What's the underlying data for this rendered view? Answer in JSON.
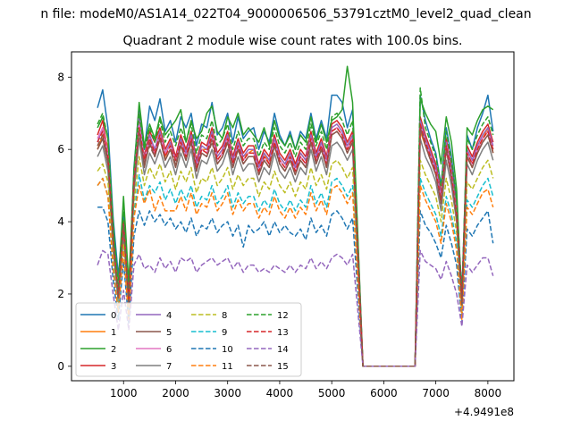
{
  "chart_data": {
    "type": "line",
    "suptitle": "n file: modeM0/AS1A14_022T04_9000006506_53791cztM0_level2_quad_clean",
    "title": "Quadrant 2 module wise count rates with 100.0s bins.",
    "xlabel": "",
    "ylabel": "",
    "x_offset_label": "+4.9491e8",
    "xlim": [
      0,
      8500
    ],
    "ylim": [
      -0.4,
      8.7
    ],
    "xticks": [
      1000,
      2000,
      3000,
      4000,
      5000,
      6000,
      7000,
      8000
    ],
    "xtick_labels": [
      "1000",
      "2000",
      "3000",
      "4000",
      "5000",
      "6000",
      "7000",
      "8000"
    ],
    "yticks": [
      0,
      2,
      4,
      6,
      8
    ],
    "ytick_labels": [
      "0",
      "2",
      "4",
      "6",
      "8"
    ],
    "grid": false,
    "legend": {
      "placement": "lower-left",
      "columns": 4
    },
    "x": [
      500,
      600,
      700,
      800,
      900,
      1000,
      1100,
      1200,
      1300,
      1400,
      1500,
      1600,
      1700,
      1800,
      1900,
      2000,
      2100,
      2200,
      2300,
      2400,
      2500,
      2600,
      2700,
      2800,
      2900,
      3000,
      3100,
      3200,
      3300,
      3400,
      3500,
      3600,
      3700,
      3800,
      3900,
      4000,
      4100,
      4200,
      4300,
      4400,
      4500,
      4600,
      4700,
      4800,
      4900,
      5000,
      5100,
      5200,
      5300,
      5400,
      5600,
      6600,
      6700,
      6800,
      6900,
      7000,
      7100,
      7200,
      7300,
      7400,
      7500,
      7600,
      7700,
      7800,
      7900,
      8000,
      8100
    ],
    "series": [
      {
        "name": "0",
        "color": "#1f77b4",
        "dash": false,
        "values": [
          7.15,
          7.65,
          6.6,
          4.1,
          2.5,
          4.2,
          2.0,
          5.5,
          7.2,
          6.0,
          7.2,
          6.8,
          7.4,
          6.5,
          6.8,
          6.2,
          6.9,
          6.6,
          7.0,
          6.1,
          6.7,
          6.6,
          7.3,
          6.4,
          6.6,
          7.0,
          6.2,
          6.9,
          6.3,
          6.5,
          6.6,
          6.0,
          6.5,
          6.2,
          7.0,
          6.4,
          6.1,
          6.5,
          6.0,
          6.5,
          6.3,
          7.0,
          6.3,
          6.8,
          6.3,
          7.5,
          7.5,
          7.3,
          6.6,
          7.1,
          0,
          0,
          7.5,
          6.8,
          6.3,
          5.9,
          5.0,
          6.6,
          5.8,
          4.6,
          2.0,
          6.4,
          6.0,
          6.6,
          7.0,
          7.5,
          6.5
        ]
      },
      {
        "name": "1",
        "color": "#ff7f0e",
        "dash": false,
        "values": [
          6.0,
          6.4,
          6.1,
          3.6,
          2.3,
          3.8,
          1.7,
          4.9,
          6.3,
          5.6,
          6.3,
          6.0,
          6.4,
          5.8,
          6.2,
          5.7,
          6.2,
          5.9,
          6.3,
          5.6,
          6.0,
          6.0,
          6.4,
          5.8,
          6.0,
          6.3,
          5.7,
          6.1,
          5.8,
          5.9,
          6.0,
          5.5,
          5.9,
          5.6,
          6.2,
          5.8,
          5.6,
          5.9,
          5.5,
          5.9,
          5.7,
          6.3,
          5.8,
          6.1,
          5.7,
          6.5,
          6.6,
          6.4,
          6.0,
          6.3,
          0,
          0,
          6.5,
          6.1,
          5.8,
          5.4,
          4.6,
          6.0,
          5.3,
          4.2,
          1.8,
          5.8,
          5.5,
          6.0,
          6.3,
          6.6,
          5.9
        ]
      },
      {
        "name": "2",
        "color": "#2ca02c",
        "dash": false,
        "values": [
          6.6,
          6.9,
          6.3,
          3.9,
          2.2,
          4.7,
          2.3,
          5.4,
          7.3,
          6.1,
          6.7,
          6.3,
          6.9,
          6.4,
          6.6,
          6.8,
          7.1,
          6.2,
          6.8,
          6.3,
          6.5,
          7.0,
          7.2,
          6.5,
          6.3,
          6.9,
          6.6,
          7.0,
          6.4,
          6.6,
          6.4,
          6.2,
          6.6,
          6.1,
          6.8,
          6.3,
          6.1,
          6.4,
          6.0,
          6.4,
          6.2,
          6.9,
          6.2,
          6.7,
          6.2,
          6.8,
          6.9,
          7.1,
          8.3,
          7.3,
          0,
          0,
          7.4,
          7.0,
          6.7,
          6.5,
          5.6,
          6.9,
          6.2,
          4.9,
          1.7,
          6.6,
          6.4,
          6.8,
          7.1,
          7.2,
          7.1
        ]
      },
      {
        "name": "3",
        "color": "#d62728",
        "dash": false,
        "values": [
          6.4,
          6.8,
          5.9,
          3.5,
          2.0,
          4.0,
          1.8,
          5.2,
          6.8,
          5.8,
          6.5,
          6.2,
          6.6,
          6.0,
          6.3,
          5.8,
          6.4,
          6.0,
          6.5,
          5.7,
          6.2,
          6.1,
          6.6,
          5.9,
          6.1,
          6.5,
          5.8,
          6.3,
          5.9,
          6.1,
          6.1,
          5.6,
          6.0,
          5.8,
          6.4,
          5.9,
          5.7,
          6.0,
          5.6,
          6.0,
          5.8,
          6.5,
          5.9,
          6.3,
          5.8,
          6.7,
          6.8,
          6.6,
          6.2,
          6.5,
          0,
          0,
          6.9,
          6.4,
          6.0,
          5.6,
          4.8,
          6.3,
          5.5,
          4.4,
          1.9,
          6.1,
          5.8,
          6.2,
          6.5,
          6.7,
          6.2
        ]
      },
      {
        "name": "4",
        "color": "#9467bd",
        "dash": false,
        "values": [
          6.2,
          6.6,
          5.8,
          3.4,
          1.9,
          3.9,
          1.7,
          5.1,
          7.0,
          5.7,
          6.4,
          6.0,
          6.5,
          5.9,
          6.2,
          5.7,
          6.3,
          5.9,
          6.4,
          5.6,
          6.1,
          6.0,
          6.5,
          5.8,
          6.0,
          6.4,
          5.7,
          6.2,
          5.8,
          6.0,
          6.0,
          5.5,
          5.9,
          5.7,
          6.3,
          5.8,
          5.6,
          5.9,
          5.5,
          5.9,
          5.7,
          6.4,
          5.8,
          6.2,
          5.7,
          6.6,
          6.7,
          6.5,
          6.1,
          6.4,
          0,
          0,
          6.8,
          6.3,
          5.9,
          5.5,
          4.7,
          6.2,
          5.4,
          4.3,
          1.8,
          6.0,
          5.7,
          6.1,
          6.4,
          6.6,
          6.1
        ]
      },
      {
        "name": "5",
        "color": "#8c564b",
        "dash": false,
        "values": [
          6.0,
          6.3,
          5.6,
          3.3,
          1.8,
          3.8,
          1.6,
          4.9,
          6.6,
          5.5,
          6.2,
          5.8,
          6.3,
          5.7,
          6.0,
          5.5,
          6.1,
          5.7,
          6.2,
          5.4,
          5.9,
          5.8,
          6.3,
          5.6,
          5.8,
          6.2,
          5.5,
          6.0,
          5.6,
          5.8,
          5.8,
          5.3,
          5.7,
          5.5,
          6.1,
          5.6,
          5.4,
          5.7,
          5.3,
          5.7,
          5.5,
          6.2,
          5.6,
          6.0,
          5.5,
          6.4,
          6.5,
          6.3,
          5.9,
          6.2,
          0,
          0,
          6.6,
          6.1,
          5.7,
          5.3,
          4.5,
          6.0,
          5.2,
          4.1,
          1.7,
          5.8,
          5.5,
          5.9,
          6.2,
          6.4,
          5.9
        ]
      },
      {
        "name": "6",
        "color": "#e377c2",
        "dash": false,
        "values": [
          6.3,
          6.6,
          5.9,
          3.5,
          2.0,
          3.9,
          1.8,
          5.1,
          6.7,
          5.7,
          6.3,
          5.9,
          6.4,
          5.9,
          6.1,
          5.7,
          6.2,
          5.8,
          6.3,
          5.5,
          6.0,
          5.9,
          6.4,
          5.7,
          5.9,
          6.3,
          5.6,
          6.1,
          5.7,
          5.9,
          5.9,
          5.4,
          5.8,
          5.6,
          6.2,
          5.7,
          5.5,
          5.8,
          5.4,
          5.8,
          5.6,
          6.3,
          5.7,
          6.1,
          5.6,
          6.5,
          6.6,
          6.4,
          6.0,
          6.3,
          0,
          0,
          6.7,
          6.2,
          5.8,
          5.4,
          4.6,
          6.1,
          5.3,
          4.2,
          1.8,
          5.9,
          5.6,
          6.0,
          6.3,
          6.5,
          6.0
        ]
      },
      {
        "name": "7",
        "color": "#7f7f7f",
        "dash": false,
        "values": [
          5.8,
          6.1,
          5.4,
          3.2,
          1.8,
          3.6,
          1.6,
          4.8,
          6.3,
          5.3,
          5.9,
          5.6,
          6.0,
          5.5,
          5.8,
          5.3,
          5.9,
          5.5,
          6.0,
          5.2,
          5.7,
          5.6,
          6.0,
          5.4,
          5.6,
          6.0,
          5.3,
          5.8,
          5.4,
          5.6,
          5.6,
          5.1,
          5.5,
          5.3,
          5.9,
          5.4,
          5.2,
          5.5,
          5.1,
          5.5,
          5.3,
          6.0,
          5.4,
          5.8,
          5.3,
          6.1,
          6.2,
          6.0,
          5.7,
          6.0,
          0,
          0,
          6.3,
          5.8,
          5.5,
          5.1,
          4.3,
          5.7,
          5.0,
          4.0,
          1.6,
          5.6,
          5.3,
          5.7,
          6.0,
          6.2,
          5.7
        ]
      },
      {
        "name": "8",
        "color": "#bcbd22",
        "dash": true,
        "values": [
          5.4,
          5.6,
          5.1,
          3.0,
          1.7,
          3.4,
          1.5,
          4.5,
          5.8,
          5.0,
          5.5,
          5.2,
          5.6,
          5.1,
          5.4,
          4.9,
          5.4,
          5.1,
          5.5,
          4.8,
          5.2,
          5.1,
          5.5,
          5.0,
          5.2,
          5.5,
          4.9,
          5.3,
          5.0,
          5.2,
          5.2,
          4.7,
          5.1,
          4.9,
          5.4,
          5.0,
          4.8,
          5.1,
          4.7,
          5.1,
          4.9,
          5.5,
          5.0,
          5.3,
          4.9,
          5.6,
          5.7,
          5.5,
          5.2,
          5.5,
          0,
          0,
          5.7,
          5.3,
          5.0,
          4.7,
          4.0,
          5.2,
          4.6,
          3.7,
          1.5,
          5.1,
          4.9,
          5.2,
          5.5,
          5.7,
          5.2
        ]
      },
      {
        "name": "9",
        "color": "#17becf",
        "dash": true,
        "values": [
          5.0,
          5.2,
          4.7,
          2.8,
          1.6,
          3.2,
          1.4,
          4.2,
          5.3,
          4.6,
          5.0,
          4.8,
          5.1,
          4.6,
          4.9,
          4.5,
          4.9,
          4.6,
          5.0,
          4.4,
          4.7,
          4.6,
          5.0,
          4.5,
          4.7,
          5.0,
          4.4,
          4.8,
          4.5,
          4.7,
          4.7,
          4.3,
          4.6,
          4.4,
          4.9,
          4.5,
          4.3,
          4.6,
          4.3,
          4.6,
          4.4,
          5.0,
          4.5,
          4.8,
          4.4,
          5.1,
          5.2,
          5.0,
          4.7,
          5.0,
          0,
          0,
          5.2,
          4.8,
          4.5,
          4.2,
          3.6,
          4.7,
          4.2,
          3.4,
          1.4,
          4.6,
          4.4,
          4.7,
          5.0,
          5.2,
          4.7
        ]
      },
      {
        "name": "10",
        "color": "#1f77b4",
        "dash": true,
        "values": [
          4.4,
          4.4,
          4.0,
          2.4,
          1.3,
          2.9,
          1.2,
          3.6,
          4.3,
          3.9,
          4.3,
          4.0,
          4.2,
          3.9,
          4.1,
          3.8,
          4.0,
          3.7,
          4.1,
          3.6,
          3.9,
          3.8,
          4.1,
          3.7,
          3.9,
          4.0,
          3.6,
          3.9,
          3.3,
          3.9,
          3.7,
          3.8,
          4.0,
          3.6,
          4.0,
          3.7,
          3.9,
          3.7,
          3.6,
          3.8,
          3.5,
          4.1,
          3.7,
          3.9,
          3.6,
          4.2,
          4.3,
          4.1,
          3.8,
          4.1,
          0,
          0,
          4.3,
          3.9,
          3.7,
          3.4,
          3.0,
          3.9,
          3.4,
          2.8,
          1.2,
          3.8,
          3.6,
          3.9,
          4.1,
          4.3,
          3.4
        ]
      },
      {
        "name": "11",
        "color": "#ff7f0e",
        "dash": true,
        "values": [
          5.0,
          5.2,
          4.7,
          2.7,
          1.5,
          3.2,
          1.3,
          4.1,
          5.0,
          4.5,
          4.9,
          4.3,
          4.7,
          4.3,
          4.3,
          4.3,
          4.7,
          4.3,
          4.8,
          4.2,
          4.5,
          4.4,
          4.8,
          4.3,
          4.5,
          4.8,
          4.2,
          4.6,
          4.3,
          4.5,
          4.5,
          4.1,
          4.4,
          4.2,
          4.7,
          4.3,
          4.1,
          4.4,
          4.1,
          4.4,
          4.2,
          4.8,
          4.3,
          4.6,
          4.2,
          4.9,
          5.0,
          4.8,
          4.5,
          4.8,
          0,
          0,
          5.0,
          4.6,
          4.3,
          4.0,
          3.4,
          4.5,
          4.0,
          3.2,
          1.3,
          4.4,
          4.2,
          4.5,
          4.8,
          4.9,
          4.4
        ]
      },
      {
        "name": "12",
        "color": "#2ca02c",
        "dash": true,
        "values": [
          6.7,
          7.0,
          6.3,
          3.8,
          2.1,
          4.4,
          2.0,
          5.4,
          7.0,
          6.0,
          6.6,
          6.2,
          6.8,
          6.2,
          6.5,
          6.1,
          6.6,
          6.2,
          6.7,
          5.9,
          6.4,
          6.3,
          6.8,
          6.1,
          6.3,
          6.7,
          6.0,
          6.5,
          6.1,
          6.3,
          6.3,
          5.8,
          6.2,
          6.0,
          6.6,
          6.1,
          5.9,
          6.2,
          5.8,
          6.2,
          6.0,
          6.7,
          6.1,
          6.5,
          6.0,
          6.9,
          7.0,
          6.8,
          6.4,
          6.8,
          0,
          0,
          7.7,
          6.6,
          6.2,
          5.8,
          5.0,
          6.5,
          5.7,
          4.6,
          2.0,
          6.3,
          6.0,
          6.4,
          6.7,
          6.9,
          6.4
        ]
      },
      {
        "name": "13",
        "color": "#d62728",
        "dash": true,
        "values": [
          6.2,
          6.5,
          5.8,
          3.5,
          1.9,
          3.9,
          1.8,
          5.1,
          6.6,
          5.7,
          6.3,
          5.9,
          6.4,
          5.8,
          6.1,
          5.7,
          6.2,
          5.8,
          6.3,
          5.5,
          6.0,
          5.9,
          6.4,
          5.7,
          5.9,
          6.3,
          5.6,
          6.1,
          5.7,
          5.9,
          5.9,
          5.4,
          5.8,
          5.6,
          6.2,
          5.7,
          5.5,
          5.8,
          5.4,
          5.8,
          5.6,
          6.3,
          5.7,
          6.1,
          5.6,
          6.5,
          6.6,
          6.4,
          6.0,
          6.3,
          0,
          0,
          6.7,
          6.2,
          5.8,
          5.4,
          4.6,
          6.1,
          5.3,
          4.2,
          1.8,
          5.9,
          5.6,
          6.0,
          6.3,
          6.5,
          6.0
        ]
      },
      {
        "name": "14",
        "color": "#9467bd",
        "dash": true,
        "values": [
          2.8,
          3.2,
          3.1,
          2.0,
          1.0,
          2.1,
          1.0,
          2.8,
          3.1,
          2.7,
          2.8,
          2.6,
          3.0,
          2.7,
          2.9,
          2.6,
          3.0,
          2.9,
          3.0,
          2.6,
          2.8,
          2.9,
          3.0,
          2.8,
          2.9,
          3.0,
          2.7,
          2.9,
          2.6,
          2.8,
          2.8,
          2.6,
          2.7,
          2.6,
          2.8,
          2.7,
          2.6,
          2.8,
          2.6,
          2.8,
          2.7,
          3.0,
          2.7,
          2.9,
          2.7,
          3.0,
          3.1,
          3.0,
          2.8,
          3.1,
          0,
          0,
          3.2,
          2.9,
          2.8,
          2.7,
          2.4,
          2.9,
          2.5,
          2.0,
          1.1,
          2.8,
          2.6,
          2.8,
          3.0,
          3.0,
          2.5
        ]
      },
      {
        "name": "15",
        "color": "#8c564b",
        "dash": true,
        "values": [
          6.1,
          6.4,
          5.7,
          3.4,
          1.9,
          3.9,
          1.7,
          5.0,
          6.5,
          5.6,
          6.1,
          5.8,
          6.3,
          5.7,
          6.0,
          5.6,
          6.1,
          5.7,
          6.2,
          5.4,
          5.9,
          5.8,
          6.2,
          5.6,
          5.8,
          6.2,
          5.5,
          6.0,
          5.6,
          5.8,
          5.8,
          5.3,
          5.7,
          5.5,
          6.1,
          5.6,
          5.4,
          5.7,
          5.3,
          5.7,
          5.5,
          6.2,
          5.6,
          6.0,
          5.5,
          6.4,
          6.5,
          6.3,
          5.9,
          6.2,
          0,
          0,
          6.6,
          6.1,
          5.7,
          5.3,
          4.5,
          6.0,
          5.2,
          4.1,
          1.7,
          5.8,
          5.5,
          5.9,
          6.2,
          6.4,
          5.9
        ]
      }
    ]
  }
}
